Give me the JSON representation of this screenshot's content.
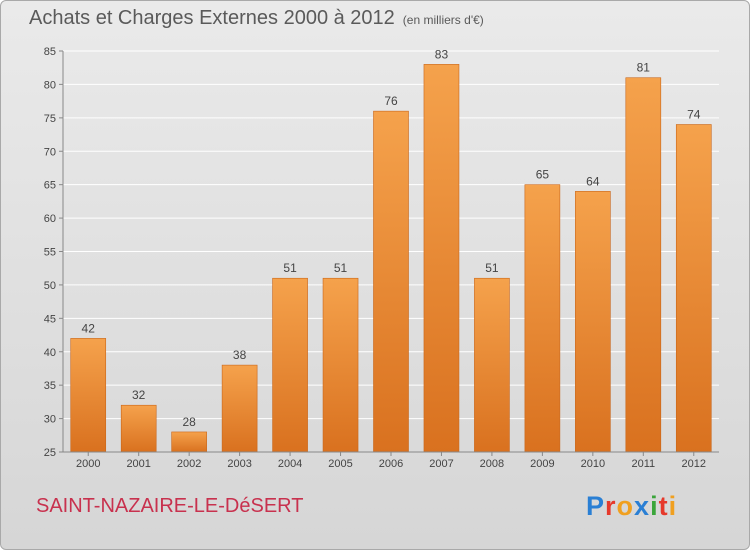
{
  "header": {
    "title": "Achats et Charges Externes 2000 à 2012",
    "unit": "(en milliers d'€)"
  },
  "footer": {
    "place": "SAINT-NAZAIRE-LE-DéSERT",
    "logo_text": "Proxiti",
    "logo_colors": [
      "#2a7fd4",
      "#e6392b",
      "#f0a020",
      "#2a7fd4",
      "#3aa53a",
      "#e6392b",
      "#f0a020"
    ]
  },
  "colors": {
    "bar_top": "#f5a24c",
    "bar_bottom": "#d9711f",
    "grid": "#ffffff",
    "axis_text": "#444444"
  },
  "chart_data": {
    "type": "bar",
    "categories": [
      "2000",
      "2001",
      "2002",
      "2003",
      "2004",
      "2005",
      "2006",
      "2007",
      "2008",
      "2009",
      "2010",
      "2011",
      "2012"
    ],
    "values": [
      42,
      32,
      28,
      38,
      51,
      51,
      76,
      83,
      51,
      65,
      64,
      81,
      74
    ],
    "title": "Achats et Charges Externes 2000 à 2012",
    "ylim": [
      25,
      85
    ],
    "yticks": [
      25,
      30,
      35,
      40,
      45,
      50,
      55,
      60,
      65,
      70,
      75,
      80,
      85
    ],
    "grid": true,
    "data_labels": true
  }
}
